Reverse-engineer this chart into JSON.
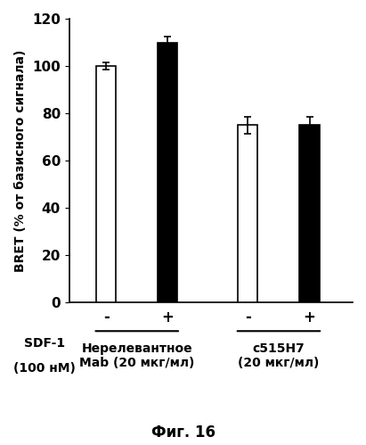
{
  "groups": [
    {
      "label": "Нерелевантное\nMab (20 мкг/мл)",
      "bars": [
        {
          "sdf": "-",
          "value": 100,
          "error": 1.5,
          "color": "white",
          "edgecolor": "black"
        },
        {
          "sdf": "+",
          "value": 110,
          "error": 2.5,
          "color": "black",
          "edgecolor": "black"
        }
      ]
    },
    {
      "label": "c515H7\n(20 мкг/мл)",
      "bars": [
        {
          "sdf": "-",
          "value": 75,
          "error": 3.5,
          "color": "white",
          "edgecolor": "black"
        },
        {
          "sdf": "+",
          "value": 75,
          "error": 3.5,
          "color": "black",
          "edgecolor": "black"
        }
      ]
    }
  ],
  "ylabel": "BRET (% от базисного сигнала)",
  "ylim": [
    0,
    120
  ],
  "yticks": [
    0,
    20,
    40,
    60,
    80,
    100,
    120
  ],
  "sdf_label_line1": "SDF-1",
  "sdf_label_line2": "(100 нМ)",
  "figure_caption": "Фиг. 16",
  "bar_width": 0.32
}
